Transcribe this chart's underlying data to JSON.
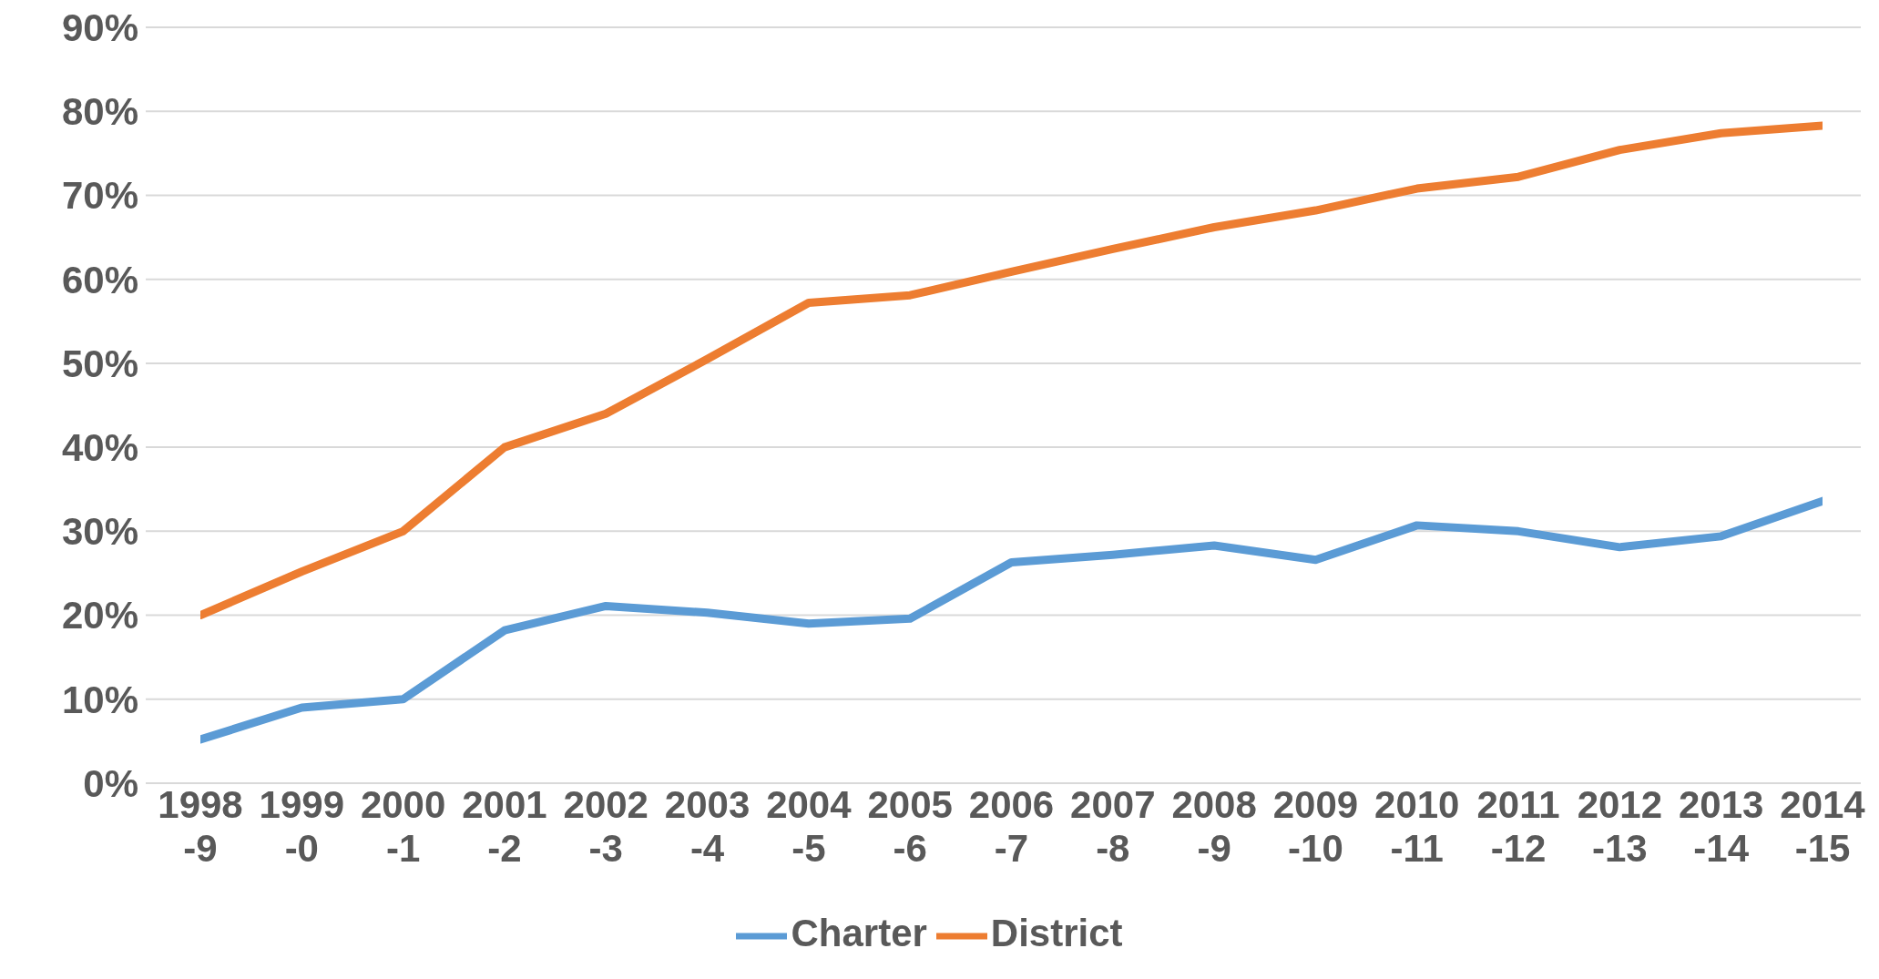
{
  "chart_data": {
    "type": "line",
    "categories": [
      "1998-9",
      "1999-0",
      "2000-1",
      "2001-2",
      "2002-3",
      "2003-4",
      "2004-5",
      "2005-6",
      "2006-7",
      "2007-8",
      "2008-9",
      "2009-10",
      "2010-11",
      "2011-12",
      "2012-13",
      "2013-14",
      "2014-15"
    ],
    "series": [
      {
        "name": "Charter",
        "color": "#5b9bd5",
        "values": [
          5.2,
          9,
          10,
          18.2,
          21.1,
          20.3,
          19,
          19.6,
          26.3,
          27.2,
          28.3,
          26.6,
          30.7,
          30,
          28.1,
          29.4,
          33.6
        ]
      },
      {
        "name": "District",
        "color": "#ed7d31",
        "values": [
          20,
          25.2,
          30,
          40,
          44,
          50.5,
          57.2,
          58.1,
          60.9,
          63.6,
          66.2,
          68.2,
          70.8,
          72.2,
          75.4,
          77.4,
          78.3
        ]
      }
    ],
    "ylim": [
      0,
      90
    ],
    "yticks": [
      {
        "value": 0,
        "label": "0%"
      },
      {
        "value": 10,
        "label": "10%"
      },
      {
        "value": 20,
        "label": "20%"
      },
      {
        "value": 30,
        "label": "30%"
      },
      {
        "value": 40,
        "label": "40%"
      },
      {
        "value": 50,
        "label": "50%"
      },
      {
        "value": 60,
        "label": "60%"
      },
      {
        "value": 70,
        "label": "70%"
      },
      {
        "value": 80,
        "label": "80%"
      },
      {
        "value": 90,
        "label": "90%"
      }
    ],
    "grid": "y",
    "legend": "bottom",
    "marker": "none",
    "line_style": "solid"
  }
}
